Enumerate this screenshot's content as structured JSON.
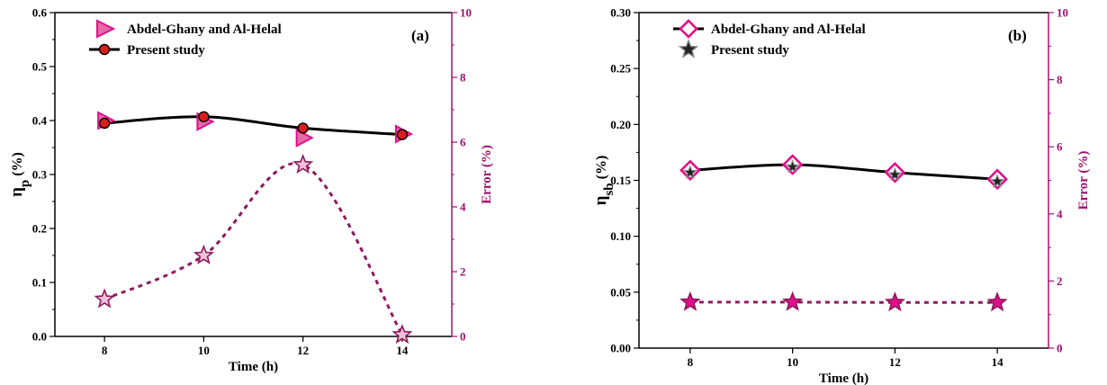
{
  "colors": {
    "axis": "#000000",
    "right_axis": "#a0106e",
    "magenta": "#e0108c",
    "triangle_fill": "#e56aa6",
    "dot_fill": "#d81e1e",
    "star_fill": "#f2c3d8",
    "error_line": "#8c1a5e",
    "diamond_fill": "#ffffff",
    "star_b_fill": "#222222",
    "star_b_stroke": "#8a8a8a"
  },
  "chart_data": [
    {
      "type": "line",
      "panel_label": "(a)",
      "xlabel": "Time (h)",
      "ylabel": "η",
      "ylabel_sub": "p",
      "ylabel_unit": " (%)",
      "y2label": "Error (%)",
      "xlim": [
        7,
        15
      ],
      "ylim": [
        0,
        0.6
      ],
      "y2lim": [
        0,
        10
      ],
      "xticks": [
        8,
        10,
        12,
        14
      ],
      "yticks": [
        "0.0",
        "0.1",
        "0.2",
        "0.3",
        "0.4",
        "0.5",
        "0.6"
      ],
      "y2ticks": [
        "0",
        "2",
        "4",
        "6",
        "8",
        "10"
      ],
      "legend": [
        "Abdel-Ghany and Al-Helal",
        "Present study"
      ],
      "series": [
        {
          "name": "Abdel-Ghany and Al-Helal",
          "marker": "triangle-right",
          "x": [
            8,
            10,
            12,
            14
          ],
          "values": [
            0.4,
            0.398,
            0.368,
            0.375
          ]
        },
        {
          "name": "Present study",
          "marker": "circle",
          "line": "solid",
          "x": [
            8,
            10,
            12,
            14
          ],
          "values": [
            0.395,
            0.407,
            0.386,
            0.374
          ]
        },
        {
          "axis": "right",
          "marker": "star",
          "line": "dashed",
          "x": [
            8,
            10,
            12,
            14
          ],
          "values": [
            1.15,
            2.5,
            5.3,
            0.05
          ]
        }
      ]
    },
    {
      "type": "line",
      "panel_label": "(b)",
      "xlabel": "Time (h)",
      "ylabel": "η",
      "ylabel_sub": "sb",
      "ylabel_unit": " (%)",
      "y2label": "Error (%)",
      "xlim": [
        7,
        15
      ],
      "ylim": [
        0,
        0.3
      ],
      "y2lim": [
        0,
        10
      ],
      "xticks": [
        8,
        10,
        12,
        14
      ],
      "yticks": [
        "0.00",
        "0.05",
        "0.10",
        "0.15",
        "0.20",
        "0.25",
        "0.30"
      ],
      "y2ticks": [
        "0",
        "2",
        "4",
        "6",
        "8",
        "10"
      ],
      "legend": [
        "Abdel-Ghany and Al-Helal",
        "Present study"
      ],
      "series": [
        {
          "name": "Abdel-Ghany and Al-Helal",
          "marker": "diamond",
          "line": "solid",
          "x": [
            8,
            10,
            12,
            14
          ],
          "values": [
            0.159,
            0.164,
            0.157,
            0.151
          ]
        },
        {
          "name": "Present study",
          "marker": "star",
          "x": [
            8,
            10,
            12,
            14
          ],
          "values": [
            0.157,
            0.162,
            0.155,
            0.149
          ]
        },
        {
          "axis": "right",
          "marker": "star",
          "line": "dashed",
          "x": [
            8,
            10,
            12,
            14
          ],
          "values": [
            1.37,
            1.37,
            1.36,
            1.36
          ]
        }
      ]
    }
  ]
}
